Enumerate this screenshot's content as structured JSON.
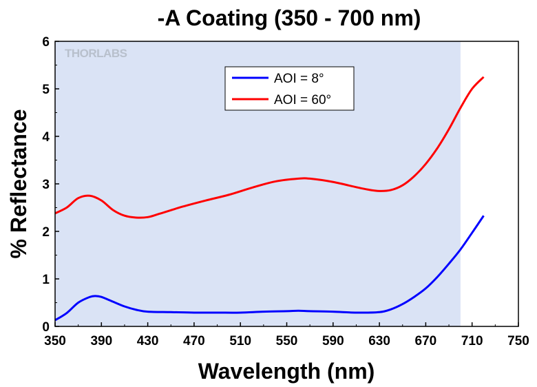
{
  "chart_data": {
    "type": "line",
    "title": "-A Coating (350 - 700 nm)",
    "xlabel": "Wavelength (nm)",
    "ylabel": "% Reflectance",
    "xlim": [
      350,
      750
    ],
    "ylim": [
      0,
      6
    ],
    "x_ticks": [
      350,
      390,
      430,
      470,
      510,
      550,
      590,
      630,
      670,
      710,
      750
    ],
    "y_ticks": [
      0,
      1,
      2,
      3,
      4,
      5,
      6
    ],
    "grid": false,
    "legend_position": "top-center",
    "shaded_region": {
      "x_range": [
        350,
        700
      ],
      "color": "#dae3f5"
    },
    "logo": "THORLABS",
    "series": [
      {
        "name": "AOI = 8°",
        "color": "#0000ff",
        "x": [
          350,
          360,
          370,
          380,
          385,
          390,
          400,
          410,
          420,
          430,
          450,
          470,
          490,
          510,
          530,
          550,
          560,
          570,
          590,
          610,
          630,
          640,
          650,
          660,
          670,
          680,
          690,
          700,
          710,
          720
        ],
        "y": [
          0.13,
          0.28,
          0.5,
          0.62,
          0.64,
          0.62,
          0.52,
          0.42,
          0.35,
          0.31,
          0.3,
          0.29,
          0.29,
          0.29,
          0.31,
          0.32,
          0.33,
          0.32,
          0.31,
          0.29,
          0.3,
          0.36,
          0.47,
          0.62,
          0.8,
          1.04,
          1.32,
          1.62,
          1.97,
          2.33
        ]
      },
      {
        "name": "AOI = 60°",
        "color": "#ff0000",
        "x": [
          350,
          360,
          370,
          380,
          390,
          400,
          410,
          420,
          430,
          440,
          460,
          480,
          500,
          520,
          540,
          560,
          570,
          590,
          610,
          620,
          630,
          640,
          650,
          660,
          670,
          680,
          690,
          700,
          710,
          720
        ],
        "y": [
          2.38,
          2.5,
          2.7,
          2.75,
          2.65,
          2.45,
          2.33,
          2.29,
          2.3,
          2.37,
          2.52,
          2.65,
          2.77,
          2.92,
          3.05,
          3.11,
          3.11,
          3.04,
          2.93,
          2.88,
          2.85,
          2.87,
          2.97,
          3.16,
          3.42,
          3.75,
          4.15,
          4.6,
          5.0,
          5.25
        ]
      }
    ]
  }
}
